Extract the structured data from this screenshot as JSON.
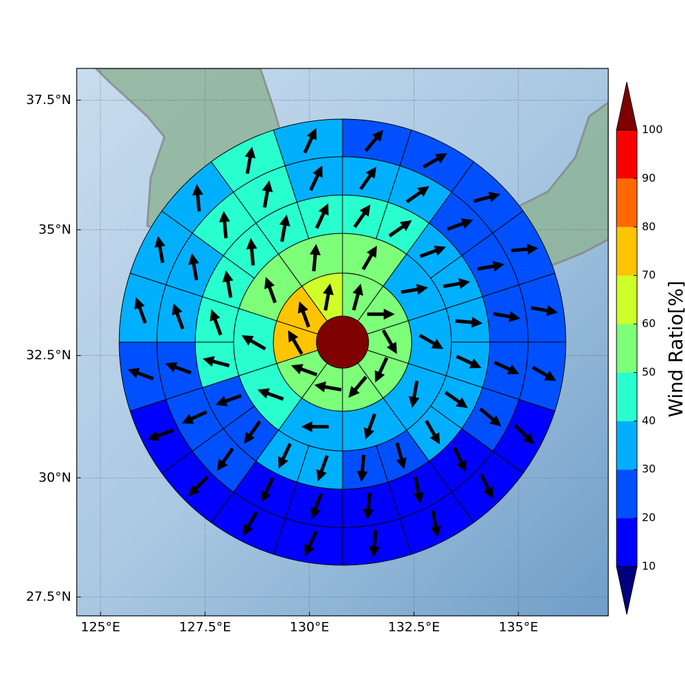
{
  "chart_data": {
    "type": "polar-sector-map",
    "projection": "mercator",
    "xlim": [
      124.43,
      137.15
    ],
    "ylim": [
      27.1,
      38.1
    ],
    "xticks": [
      {
        "value": 125,
        "label": "125°E"
      },
      {
        "value": 127.5,
        "label": "127.5°E"
      },
      {
        "value": 130,
        "label": "130°E"
      },
      {
        "value": 132.5,
        "label": "132.5°E"
      },
      {
        "value": 135,
        "label": "135°E"
      }
    ],
    "yticks": [
      {
        "value": 27.5,
        "label": "27.5°N"
      },
      {
        "value": 30,
        "label": "30°N"
      },
      {
        "value": 32.5,
        "label": "32.5°N"
      },
      {
        "value": 35,
        "label": "35°N"
      },
      {
        "value": 37.5,
        "label": "37.5°N"
      }
    ],
    "grid": true,
    "colorbar_label": "Wind Ratio[%]",
    "levels": [
      10,
      20,
      30,
      40,
      50,
      60,
      70,
      80,
      90,
      100
    ],
    "colors": [
      "#00007f",
      "#0000ff",
      "#0050ff",
      "#00b0ff",
      "#29ffce",
      "#7dff7a",
      "#ceff29",
      "#ffc400",
      "#ff6800",
      "#f80000",
      "#7f0000"
    ],
    "center_value": 105,
    "rings": [
      {
        "values": [
          55,
          55,
          55,
          55,
          55,
          55,
          52,
          75,
          75,
          65
        ],
        "directions": [
          15,
          90,
          150,
          205,
          220,
          280,
          290,
          330,
          340,
          10
        ]
      },
      {
        "values": [
          55,
          35,
          35,
          35,
          35,
          35,
          45,
          45,
          55,
          55
        ],
        "directions": [
          30,
          80,
          120,
          190,
          200,
          270,
          290,
          300,
          340,
          5
        ]
      },
      {
        "values": [
          45,
          45,
          35,
          35,
          35,
          35,
          35,
          35,
          25,
          25,
          35,
          35,
          25,
          25,
          45,
          45,
          45,
          45,
          45,
          45
        ],
        "directions": [
          35,
          55,
          70,
          80,
          95,
          115,
          125,
          150,
          165,
          185,
          200,
          205,
          215,
          250,
          285,
          340,
          350,
          355,
          10,
          25
        ]
      },
      {
        "values": [
          35,
          35,
          25,
          25,
          25,
          25,
          25,
          15,
          15,
          15,
          15,
          15,
          25,
          25,
          25,
          35,
          35,
          45,
          45,
          35
        ],
        "directions": [
          35,
          55,
          70,
          80,
          100,
          115,
          130,
          155,
          170,
          185,
          200,
          205,
          215,
          245,
          290,
          340,
          350,
          355,
          10,
          25
        ]
      },
      {
        "values": [
          25,
          25,
          25,
          25,
          25,
          25,
          15,
          15,
          15,
          15,
          15,
          15,
          15,
          15,
          25,
          35,
          35,
          35,
          45,
          35
        ],
        "directions": [
          40,
          60,
          75,
          85,
          100,
          120,
          135,
          155,
          170,
          185,
          205,
          210,
          225,
          250,
          290,
          340,
          350,
          355,
          10,
          25
        ]
      }
    ]
  }
}
